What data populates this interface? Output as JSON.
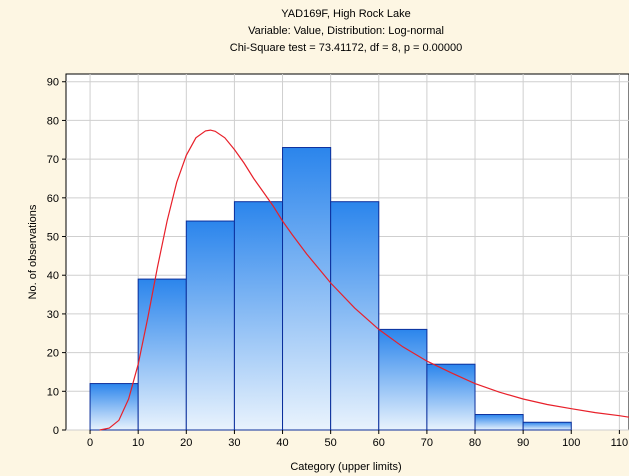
{
  "chart_data": {
    "type": "bar",
    "title": [
      "YAD169F, High Rock Lake",
      "Variable: Value, Distribution: Log-normal",
      "Chi-Square test = 73.41172, df = 8, p = 0.00000"
    ],
    "xlabel": "Category (upper limits)",
    "ylabel": "No. of observations",
    "xlim": [
      -5,
      112
    ],
    "ylim": [
      0,
      92
    ],
    "xticks": [
      0,
      10,
      20,
      30,
      40,
      50,
      60,
      70,
      80,
      90,
      100,
      110
    ],
    "yticks": [
      0,
      10,
      20,
      30,
      40,
      50,
      60,
      70,
      80,
      90
    ],
    "grid": true,
    "bins": [
      {
        "x0": 0,
        "x1": 10,
        "value": 12
      },
      {
        "x0": 10,
        "x1": 20,
        "value": 39
      },
      {
        "x0": 20,
        "x1": 30,
        "value": 54
      },
      {
        "x0": 30,
        "x1": 40,
        "value": 59
      },
      {
        "x0": 40,
        "x1": 50,
        "value": 73
      },
      {
        "x0": 50,
        "x1": 60,
        "value": 59
      },
      {
        "x0": 60,
        "x1": 70,
        "value": 26
      },
      {
        "x0": 70,
        "x1": 80,
        "value": 17
      },
      {
        "x0": 80,
        "x1": 90,
        "value": 4
      },
      {
        "x0": 90,
        "x1": 100,
        "value": 2
      }
    ],
    "fit_curve": {
      "distribution": "Log-normal",
      "color": "#e8202a",
      "x": [
        2,
        4,
        6,
        8,
        10,
        12,
        14,
        16,
        18,
        20,
        22,
        24,
        25,
        26,
        28,
        30,
        32,
        34,
        36,
        38,
        40,
        42,
        45,
        48,
        50,
        55,
        60,
        65,
        70,
        75,
        80,
        85,
        90,
        95,
        100,
        105,
        110,
        112
      ],
      "y": [
        0,
        0.5,
        2.5,
        8,
        17,
        29,
        42,
        54,
        64,
        71,
        75.5,
        77.3,
        77.5,
        77.2,
        75.5,
        72.5,
        69,
        65,
        61.5,
        58,
        54,
        50.5,
        45.5,
        41,
        38,
        31.5,
        26,
        21.5,
        17.8,
        14.8,
        12,
        9.8,
        8,
        6.6,
        5.5,
        4.5,
        3.7,
        3.3
      ]
    },
    "colors": {
      "bar_top": "#2b85ec",
      "bar_bottom": "#e9f3fd",
      "bar_stroke": "#0b2f9c",
      "grid": "#cfcfcf",
      "plot_bg": "#ffffff",
      "page_bg": "#fdf6e3"
    }
  }
}
